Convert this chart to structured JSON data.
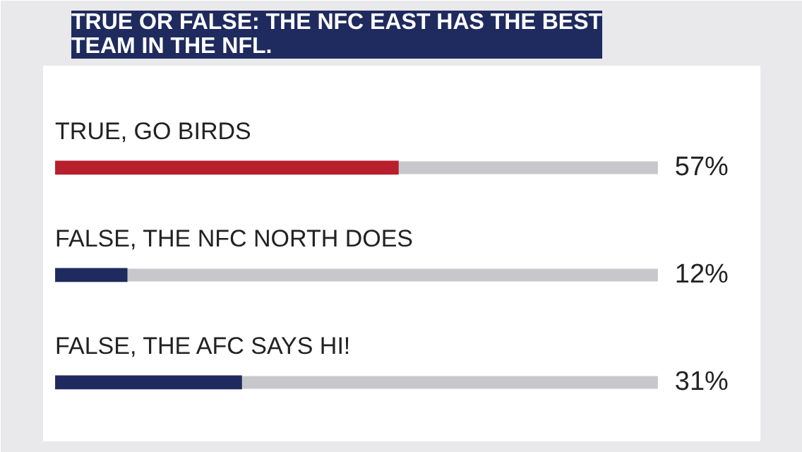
{
  "chart_data": {
    "type": "bar",
    "orientation": "horizontal",
    "title": "TRUE OR FALSE: THE NFC EAST HAS THE BEST\nTEAM IN THE NFL.",
    "categories": [
      "TRUE, GO BIRDS",
      "FALSE, THE NFC NORTH DOES",
      "FALSE, THE AFC SAYS HI!"
    ],
    "values": [
      57,
      12,
      31
    ],
    "value_labels": [
      "57%",
      "12%",
      "31%"
    ],
    "colors": [
      "#b81f2d",
      "#1f2b5e",
      "#1f2b5e"
    ],
    "xlim": [
      0,
      100
    ],
    "tick_labels": false,
    "grid": false
  }
}
